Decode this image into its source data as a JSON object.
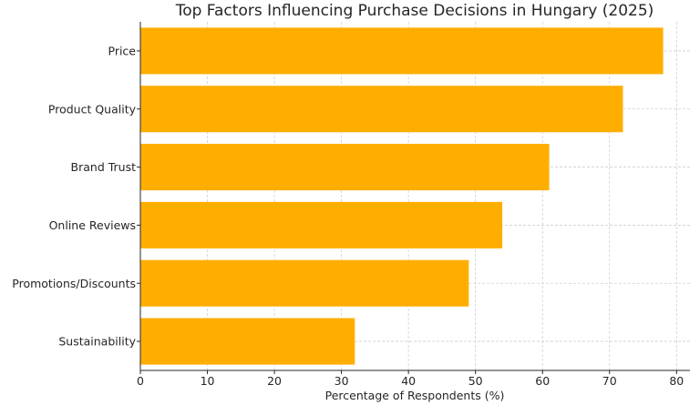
{
  "chart_data": {
    "type": "bar",
    "orientation": "horizontal",
    "title": "Top Factors Influencing Purchase Decisions in Hungary (2025)",
    "xlabel": "Percentage of Respondents (%)",
    "ylabel": "",
    "categories": [
      "Price",
      "Product Quality",
      "Brand Trust",
      "Online Reviews",
      "Promotions/Discounts",
      "Sustainability"
    ],
    "values": [
      78,
      72,
      61,
      54,
      49,
      32
    ],
    "xlim": [
      0,
      82
    ],
    "xticks": [
      0,
      10,
      20,
      30,
      40,
      50,
      60,
      70,
      80
    ],
    "grid": true,
    "bar_color": "#FFAE00"
  }
}
